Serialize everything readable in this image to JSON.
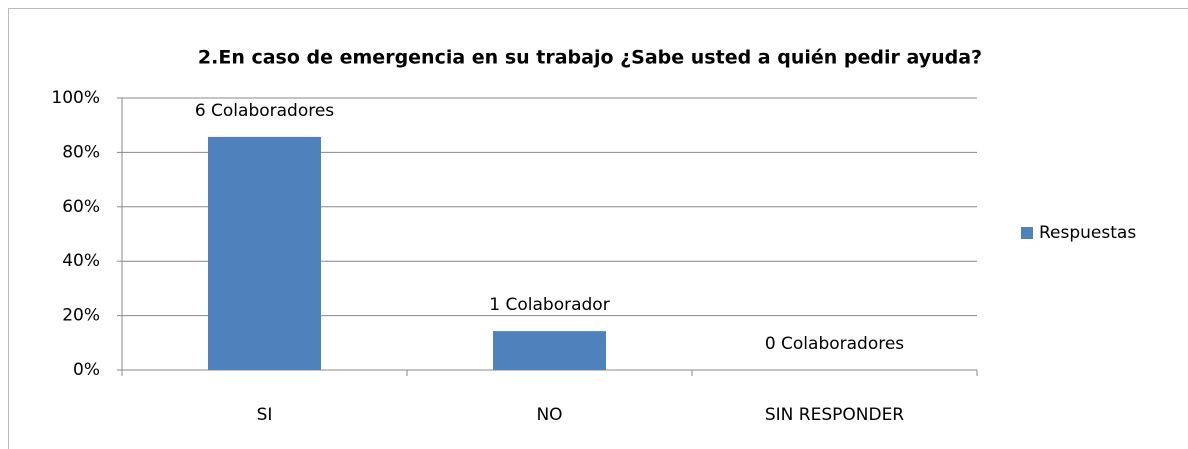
{
  "chart_data": {
    "type": "bar",
    "title": "2.En caso de emergencia en su trabajo ¿Sabe usted a quién pedir ayuda?",
    "categories": [
      "SI",
      "NO",
      "SIN RESPONDER"
    ],
    "series": [
      {
        "name": "Respuestas",
        "color": "#4f81bd",
        "values": [
          85.7,
          14.3,
          0
        ]
      }
    ],
    "annotations": [
      "6 Colaboradores",
      "1 Colaborador",
      "0 Colaboradores"
    ],
    "ylim": [
      0,
      100
    ],
    "yticks": [
      {
        "value": 0,
        "label": "0%"
      },
      {
        "value": 20,
        "label": "20%"
      },
      {
        "value": 40,
        "label": "40%"
      },
      {
        "value": 60,
        "label": "60%"
      },
      {
        "value": 80,
        "label": "80%"
      },
      {
        "value": 100,
        "label": "100%"
      }
    ],
    "grid": true,
    "legend": "right"
  }
}
